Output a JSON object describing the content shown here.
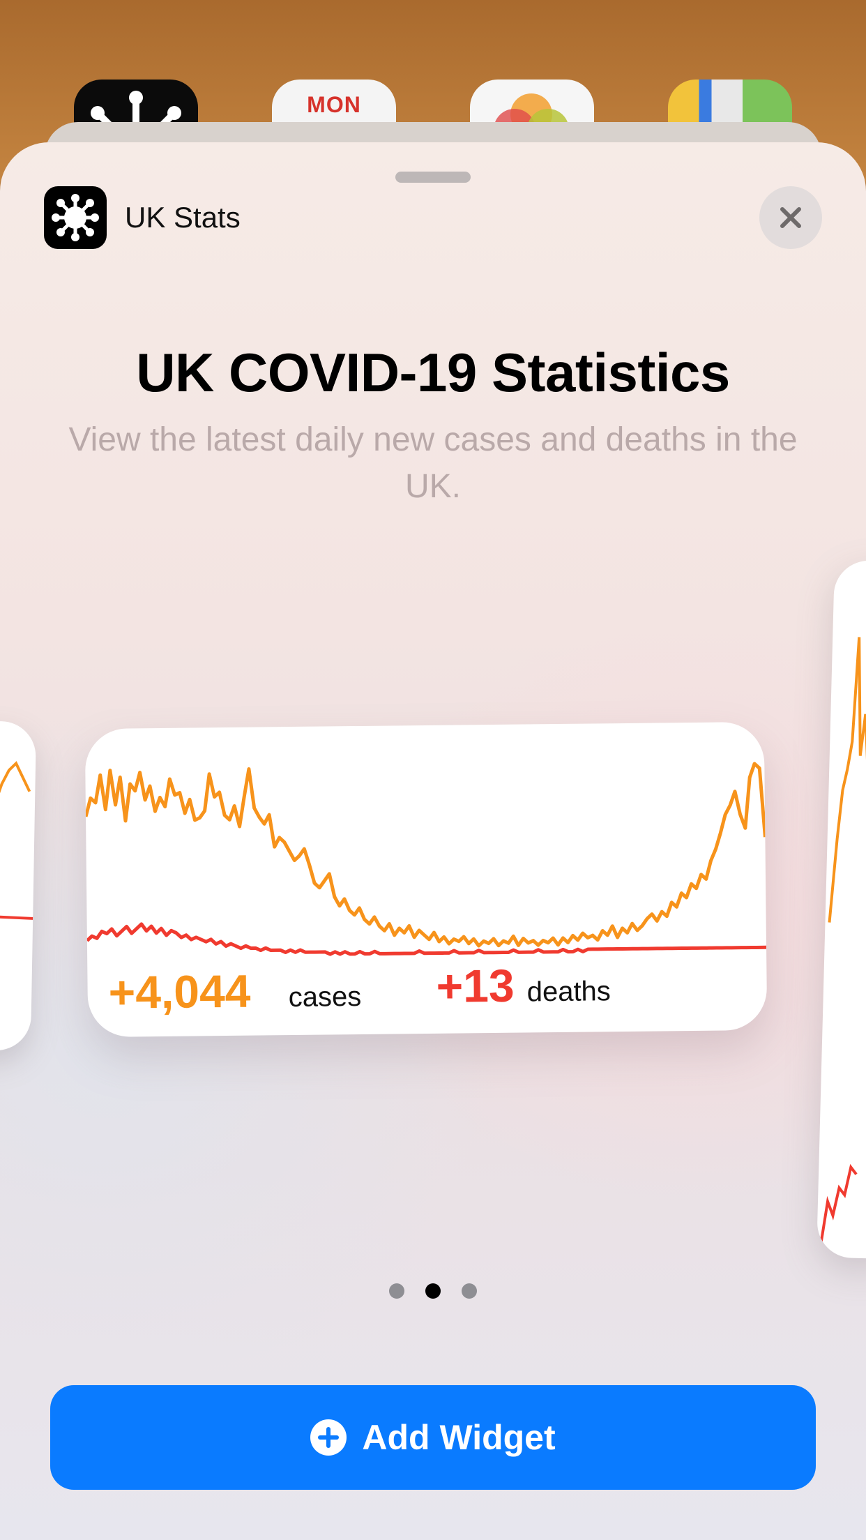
{
  "home_screen": {
    "icons": [
      {
        "name": "covid-app-icon"
      },
      {
        "name": "calendar-app-icon",
        "label": "MON"
      },
      {
        "name": "photos-app-icon"
      },
      {
        "name": "maps-app-icon"
      }
    ]
  },
  "sheet": {
    "app_name": "UK Stats",
    "app_icon": "virus-icon",
    "close_icon": "close-icon",
    "title": "UK COVID-19 Statistics",
    "subtitle": "View the latest daily new cases and deaths in the UK."
  },
  "widget": {
    "cases_value": "+4,044",
    "cases_label": "cases",
    "deaths_value": "+13",
    "deaths_label": "deaths",
    "colors": {
      "cases": "#f7931b",
      "deaths": "#f03a2f"
    }
  },
  "pager": {
    "count": 3,
    "active_index": 1
  },
  "add_button": {
    "label": "Add Widget",
    "icon": "plus-circle-icon",
    "color": "#0a7bff"
  },
  "chart_data": {
    "type": "line",
    "title": "",
    "xlabel": "",
    "ylabel": "",
    "series": [
      {
        "name": "cases",
        "values": [
          62,
          70,
          68,
          80,
          65,
          82,
          67,
          79,
          60,
          76,
          73,
          81,
          69,
          75,
          64,
          70,
          66,
          78,
          71,
          72,
          63,
          69,
          60,
          61,
          64,
          80,
          70,
          72,
          62,
          60,
          66,
          57,
          70,
          82,
          65,
          61,
          58,
          62,
          48,
          52,
          50,
          46,
          42,
          44,
          47,
          40,
          32,
          30,
          33,
          36,
          26,
          22,
          25,
          20,
          18,
          21,
          16,
          14,
          17,
          13,
          11,
          14,
          9,
          12,
          10,
          13,
          8,
          11,
          9,
          7,
          10,
          6,
          8,
          5,
          7,
          6,
          8,
          5,
          7,
          4,
          6,
          5,
          7,
          4,
          6,
          5,
          8,
          4,
          7,
          5,
          6,
          4,
          6,
          5,
          7,
          4,
          7,
          5,
          8,
          6,
          9,
          7,
          8,
          6,
          10,
          8,
          12,
          7,
          11,
          9,
          13,
          10,
          12,
          15,
          17,
          14,
          18,
          16,
          22,
          20,
          26,
          24,
          30,
          28,
          34,
          32,
          40,
          45,
          52,
          60,
          64,
          70,
          60,
          54,
          76,
          82,
          80,
          50
        ]
      },
      {
        "name": "deaths",
        "values": [
          8,
          10,
          9,
          12,
          11,
          13,
          10,
          12,
          14,
          11,
          13,
          15,
          12,
          14,
          11,
          13,
          10,
          12,
          11,
          9,
          10,
          8,
          9,
          8,
          7,
          8,
          6,
          7,
          5,
          6,
          5,
          4,
          5,
          4,
          4,
          3,
          4,
          3,
          3,
          3,
          2,
          3,
          2,
          3,
          2,
          2,
          2,
          2,
          2,
          1,
          2,
          1,
          2,
          1,
          1,
          2,
          1,
          1,
          2,
          1,
          1,
          1,
          1,
          1,
          1,
          1,
          1,
          2,
          1,
          1,
          1,
          1,
          1,
          1,
          2,
          1,
          1,
          1,
          1,
          2,
          1,
          1,
          1,
          1,
          1,
          1,
          2,
          1,
          1,
          1,
          1,
          2,
          1,
          1,
          1,
          1,
          2,
          1,
          1,
          2,
          1,
          2,
          2,
          2,
          2,
          2,
          2,
          2,
          2,
          2,
          2,
          2,
          2,
          2,
          2,
          2,
          2,
          2,
          2,
          2,
          2,
          2,
          2,
          2,
          2,
          2,
          2,
          2,
          2,
          2,
          2,
          2,
          2,
          2,
          2,
          2,
          2,
          2
        ]
      }
    ]
  }
}
